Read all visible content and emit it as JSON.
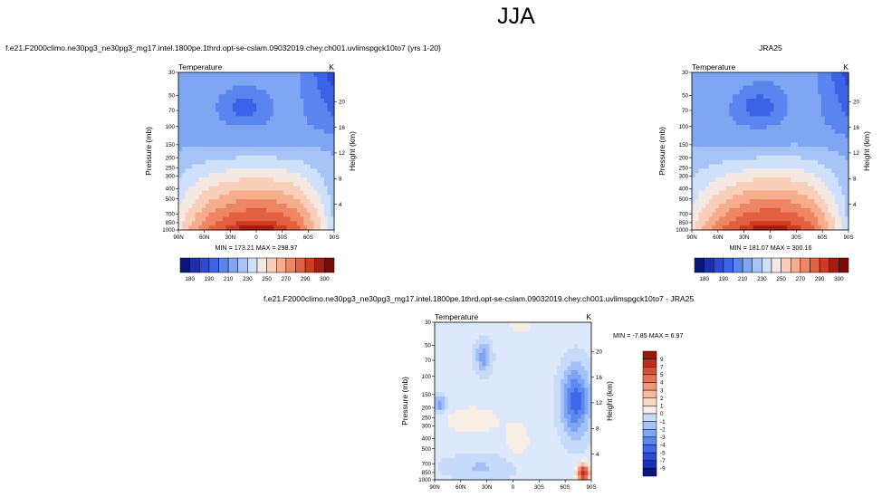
{
  "page_title": "JJA",
  "colors": {
    "temperature_palette": [
      "#08197a",
      "#1d2fae",
      "#2c4ad7",
      "#3b63e6",
      "#5a85ee",
      "#7ea6f3",
      "#a6c4f7",
      "#cfe0fa",
      "#f3e9e2",
      "#f8cfb8",
      "#f6ad8c",
      "#ef8663",
      "#e2603f",
      "#cc3b22",
      "#a81b12",
      "#7a0c08"
    ],
    "difference_palette": [
      "#0a1482",
      "#1b2fb3",
      "#2a4bd6",
      "#3e69e8",
      "#5c88ef",
      "#7ea5f4",
      "#a3c1f8",
      "#c6daf9",
      "#dde9fa",
      "#f7eee4",
      "#f7d9c6",
      "#f5bb9d",
      "#f09978",
      "#e57456",
      "#d44f35",
      "#be2d1c",
      "#9b160d"
    ]
  },
  "panels": [
    {
      "case_title": "f.e21.F2000climo.ne30pg3_ne30pg3_mg17.intel.1800pe.1thrd.opt-se-cslam.09032019.chey.ch001.uvlimspgck10to7 (yrs 1-20)",
      "left_label": "Temperature",
      "right_label": "K",
      "minmax": "MIN = 173.21   MAX = 298.97",
      "colorbar_labels": [
        "180",
        "190",
        "210",
        "230",
        "250",
        "270",
        "290",
        "300"
      ]
    },
    {
      "case_title": "JRA25",
      "left_label": "Temperature",
      "right_label": "K",
      "minmax": "MIN = 181.07   MAX = 300.16",
      "colorbar_labels": [
        "180",
        "190",
        "210",
        "230",
        "250",
        "270",
        "290",
        "300"
      ]
    },
    {
      "case_title": "f.e21.F2000climo.ne30pg3_ne30pg3_mg17.intel.1800pe.1thrd.opt-se-cslam.09032019.chey.ch001.uvlimspgck10to7 - JRA25",
      "left_label": "Temperature",
      "right_label": "K",
      "minmax": "MIN =  -7.85   MAX =   6.97",
      "colorbar_labels": [
        "9",
        "7",
        "5",
        "4",
        "3",
        "2",
        "1",
        "0",
        "-1",
        "-2",
        "-3",
        "-4",
        "-5",
        "-7",
        "-9"
      ]
    }
  ],
  "chart_data": [
    {
      "type": "heatmap",
      "title": "f.e21.F2000climo.ne30pg3_ne30pg3_mg17.intel.1800pe.1thrd.opt-se-cslam.09032019.chey.ch001.uvlimspgck10to7 (yrs 1-20)",
      "xlabel": "",
      "ylabel": "Pressure (mb)",
      "y2label": "Height (km)",
      "x_ticks": [
        "90N",
        "60N",
        "30N",
        "0",
        "30S",
        "60S",
        "90S"
      ],
      "y_ticks": [
        "30",
        "50",
        "70",
        "100",
        "150",
        "200",
        "250",
        "300",
        "400",
        "500",
        "700",
        "850",
        "1000"
      ],
      "y2_ticks": [
        "20",
        "16",
        "12",
        "8",
        "4"
      ],
      "levels": [
        180,
        190,
        210,
        230,
        250,
        270,
        290,
        300
      ],
      "min": 173.21,
      "max": 298.97
    },
    {
      "type": "heatmap",
      "title": "JRA25",
      "xlabel": "",
      "ylabel": "Pressure (mb)",
      "y2label": "Height (km)",
      "x_ticks": [
        "90N",
        "60N",
        "30N",
        "0",
        "30S",
        "60S",
        "90S"
      ],
      "y_ticks": [
        "30",
        "50",
        "70",
        "100",
        "150",
        "200",
        "250",
        "300",
        "400",
        "500",
        "700",
        "850",
        "1000"
      ],
      "y2_ticks": [
        "20",
        "16",
        "12",
        "8",
        "4"
      ],
      "levels": [
        180,
        190,
        210,
        230,
        250,
        270,
        290,
        300
      ],
      "min": 181.07,
      "max": 300.16
    },
    {
      "type": "heatmap",
      "title": "f.e21.F2000climo.ne30pg3_ne30pg3_mg17.intel.1800pe.1thrd.opt-se-cslam.09032019.chey.ch001.uvlimspgck10to7 - JRA25",
      "xlabel": "",
      "ylabel": "Pressure (mb)",
      "y2label": "Height (km)",
      "x_ticks": [
        "90N",
        "60N",
        "30N",
        "0",
        "30S",
        "60S",
        "90S"
      ],
      "y_ticks": [
        "30",
        "50",
        "70",
        "100",
        "150",
        "200",
        "250",
        "300",
        "400",
        "500",
        "700",
        "850",
        "1000"
      ],
      "y2_ticks": [
        "20",
        "16",
        "12",
        "8",
        "4"
      ],
      "levels": [
        9,
        7,
        5,
        4,
        3,
        2,
        1,
        0,
        -1,
        -2,
        -3,
        -4,
        -5,
        -7,
        -9
      ],
      "min": -7.85,
      "max": 6.97
    }
  ]
}
